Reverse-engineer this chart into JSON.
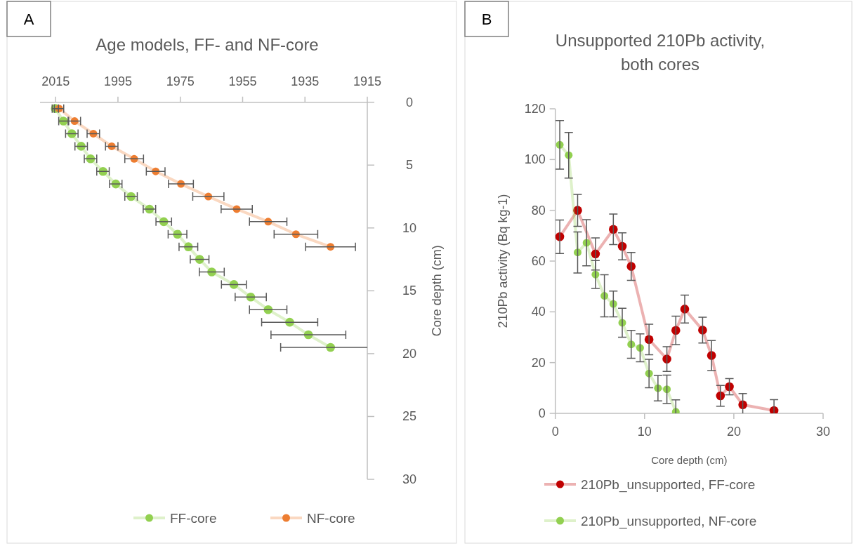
{
  "chart_data": [
    {
      "type": "line",
      "title": "Age models, FF- and NF-core",
      "ylabel": "Core depth (cm)",
      "annotations": [
        "A"
      ],
      "xlim": [
        2020,
        1915
      ],
      "xticks": [
        2015,
        1995,
        1975,
        1955,
        1935,
        1915
      ],
      "ylim": [
        30,
        0
      ],
      "yticks": [
        0,
        5,
        10,
        15,
        20,
        25,
        30
      ],
      "grid": false,
      "legend": "bottom",
      "marker": "circle",
      "line_style": "solid",
      "series": [
        {
          "name": "FF-core",
          "color": "#92d050",
          "x": [
            2015.1,
            2012.5,
            2009.8,
            2006.8,
            2003.8,
            1999.8,
            1995.7,
            1990.8,
            1984.9,
            1980.3,
            1975.9,
            1972.4,
            1968.8,
            1964.9,
            1957.8,
            1952.4,
            1946.8,
            1939.9,
            1933.9,
            1926.8
          ],
          "values": [
            0.5,
            1.5,
            2.5,
            3.5,
            4.5,
            5.5,
            6.5,
            7.5,
            8.5,
            9.5,
            10.5,
            11.5,
            12.5,
            13.5,
            14.5,
            15.5,
            16.5,
            17.5,
            18.5,
            19.5
          ],
          "xerrors": [
            1,
            1.5,
            2,
            2,
            2,
            2,
            2,
            2,
            2,
            2.5,
            3,
            3,
            3,
            4,
            4,
            5,
            6,
            9,
            12,
            16
          ]
        },
        {
          "name": "NF-core",
          "color": "#ed7d31",
          "x": [
            2013.9,
            2008.9,
            2002.9,
            1997,
            1989.8,
            1982.9,
            1974.8,
            1966,
            1956.9,
            1946.8,
            1937.9,
            1926.8
          ],
          "values": [
            0.5,
            1.5,
            2.5,
            3.5,
            4.5,
            5.5,
            6.5,
            7.5,
            8.5,
            9.5,
            10.5,
            11.5
          ],
          "xerrors": [
            1.5,
            1.9,
            2,
            2,
            3,
            3,
            4,
            5,
            5,
            6,
            7,
            8
          ]
        }
      ]
    },
    {
      "type": "line",
      "title": "Unsupported 210Pb activity, both cores",
      "xlabel": "Core depth (cm)",
      "ylabel": "210Pb activity (Bq kg-1)",
      "annotations": [
        "B"
      ],
      "xlim": [
        0,
        30
      ],
      "xticks": [
        0,
        10,
        20,
        30
      ],
      "ylim": [
        0,
        120
      ],
      "yticks": [
        0,
        20,
        40,
        60,
        80,
        100,
        120
      ],
      "grid": false,
      "legend": "bottom",
      "marker": "circle",
      "line_style": "solid",
      "series": [
        {
          "name": "210Pb_unsupported, FF-core",
          "color": "#c00000",
          "x": [
            0.5,
            2.5,
            4.5,
            6.5,
            7.5,
            8.5,
            10.5,
            12.5,
            13.5,
            14.5,
            16.5,
            17.5,
            18.5,
            19.5,
            21,
            24.5
          ],
          "values": [
            69.6,
            80,
            62.8,
            72.5,
            65.8,
            57.9,
            29.1,
            21.4,
            32.7,
            41.1,
            32.8,
            22.8,
            6.9,
            10.5,
            3.4,
            1.1
          ],
          "errors": [
            6.6,
            6.3,
            6.3,
            6,
            5.3,
            5.5,
            6,
            4.9,
            5.6,
            5.5,
            5.1,
            5.9,
            4.1,
            3.2,
            4.4,
            4.3
          ]
        },
        {
          "name": "210Pb_unsupported, NF-core",
          "color": "#92d050",
          "x": [
            0.5,
            1.5,
            2.5,
            3.5,
            4.5,
            5.5,
            6.5,
            7.5,
            8.5,
            9.5,
            10.5,
            11.5,
            12.5,
            13.5
          ],
          "values": [
            105.8,
            101.7,
            63.4,
            67.2,
            54.7,
            46.3,
            43.1,
            35.7,
            27.2,
            25.8,
            15.7,
            9.9,
            9.5,
            0.6
          ],
          "errors": [
            9.6,
            9,
            8.1,
            9.1,
            5.5,
            8.3,
            5.1,
            5.7,
            5.5,
            5.5,
            5.6,
            5,
            5.6,
            4.7
          ]
        }
      ]
    }
  ]
}
